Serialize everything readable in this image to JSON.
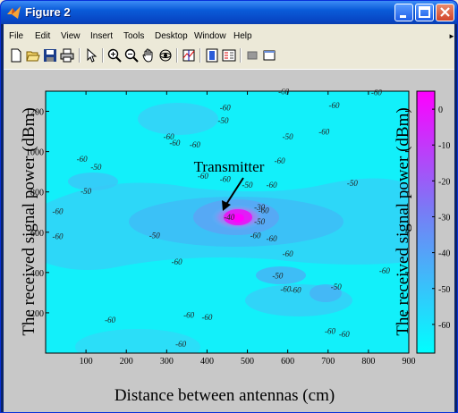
{
  "window": {
    "title": "Figure 2"
  },
  "menu": [
    "File",
    "Edit",
    "View",
    "Insert",
    "Tools",
    "Desktop",
    "Window",
    "Help"
  ],
  "icons": {
    "app": "matlab-figure-icon",
    "minimize": "minimize-icon",
    "maximize": "maximize-icon",
    "close": "close-icon"
  },
  "toolbar": [
    "new-figure-icon",
    "open-file-icon",
    "save-icon",
    "print-icon",
    "arrow-pointer-icon",
    "zoom-in-icon",
    "zoom-out-icon",
    "pan-hand-icon",
    "rotate-3d-icon",
    "data-cursor-icon",
    "colorbar-icon",
    "legend-icon",
    "hide-plot-tools-icon",
    "show-plot-tools-icon"
  ],
  "chart_data": {
    "type": "heatmap",
    "xlabel": "Distance between antennas (cm)",
    "ylabel": "The received signal power (dBm)",
    "colorbar_label": "The received signal power (dBm)",
    "xlim": [
      0,
      900
    ],
    "ylim": [
      0,
      1300
    ],
    "xticks": [
      100,
      200,
      300,
      400,
      500,
      600,
      700,
      800,
      900
    ],
    "yticks": [
      200,
      400,
      600,
      800,
      1000,
      1200
    ],
    "colorbar_ticks": [
      0,
      -10,
      -20,
      -30,
      -40,
      -50,
      -60
    ],
    "colorbar_range": [
      -68,
      5
    ],
    "colormap": [
      "#00ffff",
      "#ff00ff"
    ],
    "annotation": {
      "text": "Transmitter",
      "points_to": [
        485,
        720
      ]
    },
    "contour_labels": [
      {
        "text": "-60",
        "x": 445,
        "y": 850
      },
      {
        "text": "-50",
        "x": 500,
        "y": 820
      },
      {
        "text": "-50",
        "x": 100,
        "y": 790
      },
      {
        "text": "-60",
        "x": 390,
        "y": 865
      },
      {
        "text": "-60",
        "x": 90,
        "y": 950
      },
      {
        "text": "-60",
        "x": 320,
        "y": 1030
      },
      {
        "text": "-60",
        "x": 715,
        "y": 1215
      },
      {
        "text": "-60",
        "x": 690,
        "y": 1085
      },
      {
        "text": "-50",
        "x": 840,
        "y": 1370
      },
      {
        "text": "-60",
        "x": 590,
        "y": 1285
      },
      {
        "text": "-60",
        "x": 370,
        "y": 1020
      },
      {
        "text": "-60",
        "x": 305,
        "y": 1060
      },
      {
        "text": "-50",
        "x": 125,
        "y": 910
      },
      {
        "text": "-50",
        "x": 440,
        "y": 1140
      },
      {
        "text": "-60",
        "x": 445,
        "y": 1205
      },
      {
        "text": "-60",
        "x": 580,
        "y": 940
      },
      {
        "text": "-50",
        "x": 600,
        "y": 1060
      },
      {
        "text": "-30",
        "x": 530,
        "y": 710
      },
      {
        "text": "-60",
        "x": 540,
        "y": 695
      },
      {
        "text": "-40",
        "x": 455,
        "y": 660
      },
      {
        "text": "-60",
        "x": 30,
        "y": 690
      },
      {
        "text": "-50",
        "x": 270,
        "y": 570
      },
      {
        "text": "-60",
        "x": 520,
        "y": 570
      },
      {
        "text": "-50",
        "x": 530,
        "y": 640
      },
      {
        "text": "-60",
        "x": 600,
        "y": 480
      },
      {
        "text": "-50",
        "x": 760,
        "y": 830
      },
      {
        "text": "-60",
        "x": 30,
        "y": 565
      },
      {
        "text": "-60",
        "x": 325,
        "y": 440
      },
      {
        "text": "-50",
        "x": 575,
        "y": 370
      },
      {
        "text": "-60",
        "x": 595,
        "y": 305
      },
      {
        "text": "-50",
        "x": 720,
        "y": 315
      },
      {
        "text": "-60",
        "x": 840,
        "y": 395
      },
      {
        "text": "-60",
        "x": 160,
        "y": 150
      },
      {
        "text": "-60",
        "x": 560,
        "y": 555
      },
      {
        "text": "-60",
        "x": 400,
        "y": 165
      },
      {
        "text": "-60",
        "x": 705,
        "y": 95
      },
      {
        "text": "-60",
        "x": 355,
        "y": 175
      },
      {
        "text": "-60",
        "x": 740,
        "y": 80
      },
      {
        "text": "-60",
        "x": 620,
        "y": 300
      },
      {
        "text": "-60",
        "x": 560,
        "y": 820
      },
      {
        "text": "-60",
        "x": 820,
        "y": 1280
      },
      {
        "text": "-60",
        "x": 335,
        "y": 30
      }
    ],
    "grid": false
  }
}
